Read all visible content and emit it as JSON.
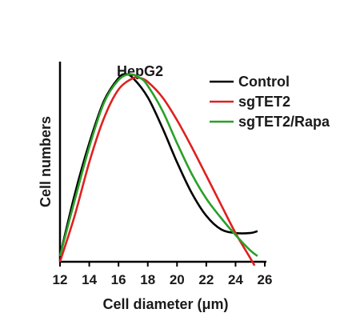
{
  "chart_data": {
    "type": "line",
    "title": "HepG2",
    "xlabel": "Cell diameter (μm)",
    "ylabel": "Cell numbers",
    "xlim": [
      12,
      26
    ],
    "ylim": [
      0,
      1.0
    ],
    "xticks": [
      "12",
      "14",
      "16",
      "18",
      "20",
      "22",
      "24",
      "26"
    ],
    "grid": false,
    "legend": "top-right",
    "series": [
      {
        "name": "Control",
        "color": "#000000",
        "x": [
          12,
          13,
          14,
          15,
          16,
          16.5,
          17,
          18,
          19,
          20,
          21,
          22,
          23,
          24,
          25,
          25.5
        ],
        "y": [
          0.03,
          0.35,
          0.62,
          0.84,
          0.96,
          0.98,
          0.96,
          0.86,
          0.7,
          0.52,
          0.36,
          0.24,
          0.17,
          0.15,
          0.15,
          0.16
        ]
      },
      {
        "name": "sgTET2",
        "color": "#e02020",
        "x": [
          12,
          13,
          14,
          15,
          16,
          17,
          17.5,
          18,
          19,
          20,
          21,
          22,
          23,
          24,
          25,
          25.3
        ],
        "y": [
          0.0,
          0.24,
          0.52,
          0.75,
          0.9,
          0.96,
          0.96,
          0.94,
          0.86,
          0.74,
          0.6,
          0.45,
          0.3,
          0.15,
          0.02,
          -0.02
        ]
      },
      {
        "name": "sgTET2/Rapa",
        "color": "#2aa02a",
        "x": [
          12,
          13,
          14,
          15,
          16,
          16.8,
          17.5,
          18,
          19,
          20,
          21,
          22,
          23,
          24,
          25,
          25.5
        ],
        "y": [
          0.03,
          0.32,
          0.6,
          0.83,
          0.95,
          0.98,
          0.96,
          0.92,
          0.79,
          0.62,
          0.46,
          0.33,
          0.23,
          0.14,
          0.06,
          0.03
        ]
      }
    ]
  }
}
